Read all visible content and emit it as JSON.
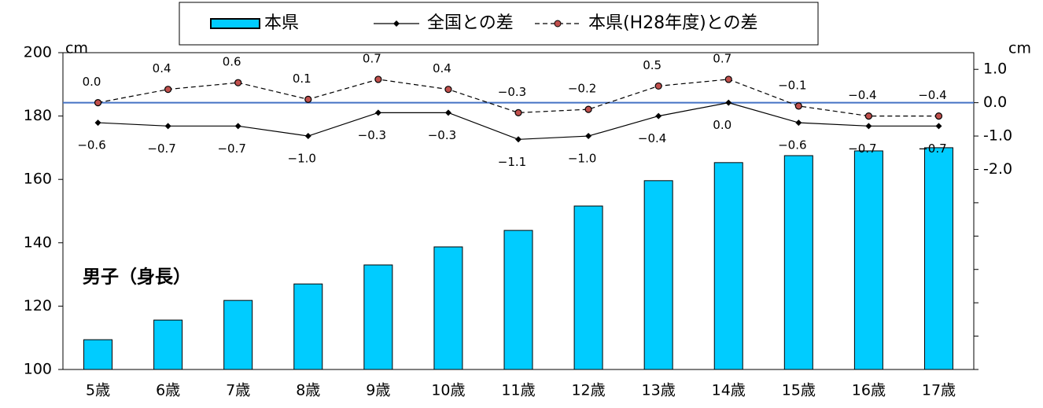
{
  "chart_data": {
    "type": "bar",
    "categories": [
      "5歳",
      "6歳",
      "7歳",
      "8歳",
      "9歳",
      "10歳",
      "11歳",
      "12歳",
      "13歳",
      "14歳",
      "15歳",
      "16歳",
      "17歳"
    ],
    "annotation": "男子（身長）",
    "y_unit": "cm",
    "y2_unit": "cm",
    "ylim": [
      100,
      200
    ],
    "yticks": [
      100,
      120,
      140,
      160,
      180,
      200
    ],
    "y2lim": [
      -8.0,
      1.5
    ],
    "y2ticks": [
      {
        "value": 1,
        "label": "1.0"
      },
      {
        "value": 0,
        "label": "0.0"
      },
      {
        "value": -1,
        "label": "-1.0"
      },
      {
        "value": -2,
        "label": "-2.0"
      }
    ],
    "y2minor": [
      -3,
      -4,
      -5,
      -6,
      -7,
      -8
    ],
    "reference_line": {
      "axis": "y2",
      "value": 0,
      "color": "#4472c4"
    },
    "series": [
      {
        "name": "本県",
        "type": "bar",
        "color": "#00ccff",
        "values": [
          109.4,
          115.6,
          121.8,
          127.0,
          133.0,
          138.7,
          143.9,
          151.6,
          159.6,
          165.3,
          167.5,
          169.0,
          170.0
        ]
      },
      {
        "name": "全国との差",
        "type": "line",
        "axis": "y2",
        "color": "#000000",
        "dash": false,
        "marker": "diamond",
        "label_side": "below",
        "values": [
          -0.6,
          -0.7,
          -0.7,
          -1.0,
          -0.3,
          -0.3,
          -1.1,
          -1.0,
          -0.4,
          0.0,
          -0.6,
          -0.7,
          -0.7
        ],
        "value_labels": [
          "−0.6",
          "−0.7",
          "−0.7",
          "−1.0",
          "−0.3",
          "−0.3",
          "−1.1",
          "−1.0",
          "−0.4",
          "0.0",
          "−0.6",
          "−0.7",
          "−0.7"
        ]
      },
      {
        "name": "本県(H28年度)との差",
        "type": "line",
        "axis": "y2",
        "color": "#000000",
        "marker_color": "#c0504d",
        "dash": true,
        "marker": "circle",
        "label_side": "above",
        "values": [
          0.0,
          0.4,
          0.6,
          0.1,
          0.7,
          0.4,
          -0.3,
          -0.2,
          0.5,
          0.7,
          -0.1,
          -0.4,
          -0.4
        ],
        "value_labels": [
          "0.0",
          "0.4",
          "0.6",
          "0.1",
          "0.7",
          "0.4",
          "−0.3",
          "−0.2",
          "0.5",
          "0.7",
          "−0.1",
          "−0.4",
          "−0.4"
        ]
      }
    ]
  }
}
